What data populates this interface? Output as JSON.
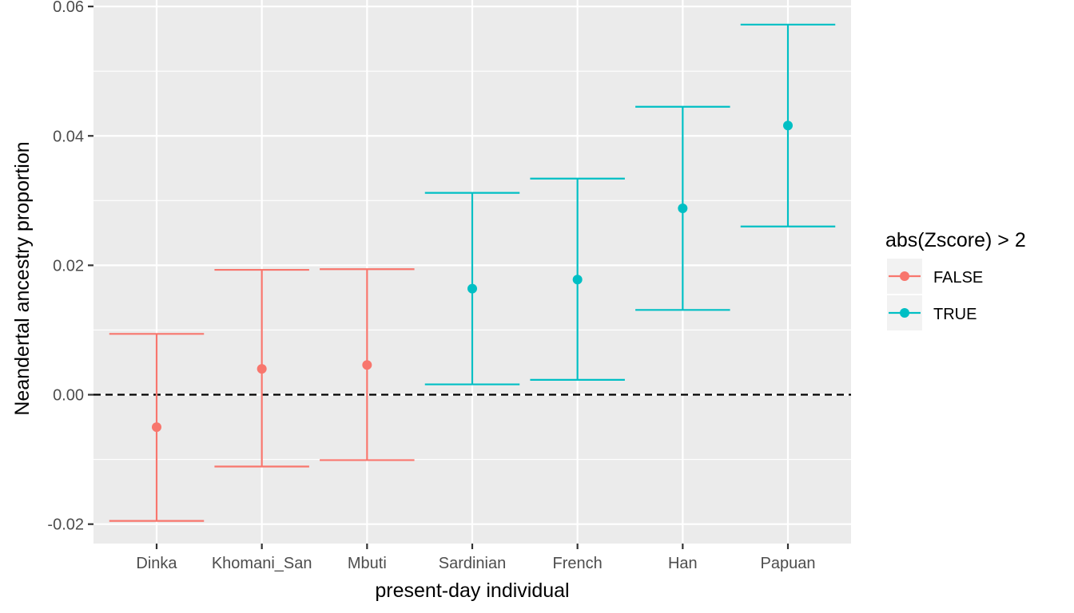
{
  "chart_data": {
    "type": "scatter",
    "subtype": "pointrange-errorbar",
    "title": "",
    "xlabel": "present-day individual",
    "ylabel": "Neandertal ancestry proportion",
    "categories": [
      "Dinka",
      "Khomani_San",
      "Mbuti",
      "Sardinian",
      "French",
      "Han",
      "Papuan"
    ],
    "ylim": [
      -0.023,
      0.061
    ],
    "yticks": [
      -0.02,
      0.0,
      0.02,
      0.04,
      0.06
    ],
    "ytick_labels": [
      "-0.02",
      "0.00",
      "0.02",
      "0.04",
      "0.06"
    ],
    "reference_line": {
      "y": 0.0,
      "style": "dashed",
      "color": "#000000"
    },
    "legend": {
      "title": "abs(Zscore) > 2",
      "placement": "right",
      "entries": [
        {
          "label": "FALSE",
          "color": "#F8766D"
        },
        {
          "label": "TRUE",
          "color": "#00BFC4"
        }
      ]
    },
    "points": [
      {
        "category": "Dinka",
        "estimate": -0.005,
        "lower": -0.0195,
        "upper": 0.0094,
        "group": "FALSE"
      },
      {
        "category": "Khomani_San",
        "estimate": 0.004,
        "lower": -0.0111,
        "upper": 0.0193,
        "group": "FALSE"
      },
      {
        "category": "Mbuti",
        "estimate": 0.0046,
        "lower": -0.0101,
        "upper": 0.0194,
        "group": "FALSE"
      },
      {
        "category": "Sardinian",
        "estimate": 0.0164,
        "lower": 0.0016,
        "upper": 0.0312,
        "group": "TRUE"
      },
      {
        "category": "French",
        "estimate": 0.0178,
        "lower": 0.0023,
        "upper": 0.0334,
        "group": "TRUE"
      },
      {
        "category": "Han",
        "estimate": 0.0288,
        "lower": 0.0131,
        "upper": 0.0445,
        "group": "TRUE"
      },
      {
        "category": "Papuan",
        "estimate": 0.0416,
        "lower": 0.026,
        "upper": 0.0572,
        "group": "TRUE"
      }
    ],
    "colors": {
      "panel": "#EBEBEB",
      "grid_major": "#FFFFFF",
      "false": "#F8766D",
      "true": "#00BFC4"
    },
    "grid": true
  }
}
